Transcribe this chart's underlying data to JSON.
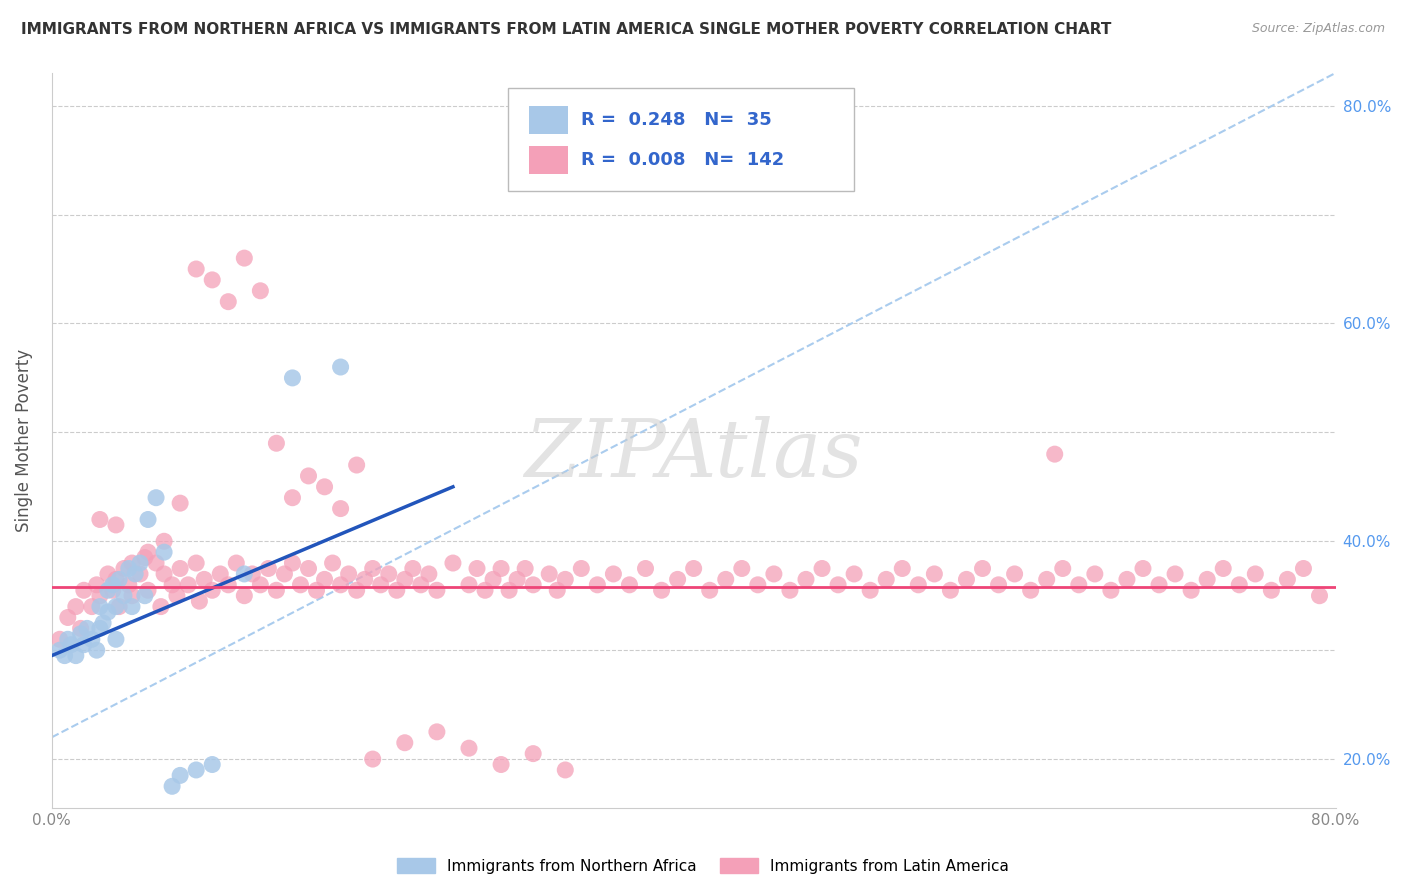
{
  "title": "IMMIGRANTS FROM NORTHERN AFRICA VS IMMIGRANTS FROM LATIN AMERICA SINGLE MOTHER POVERTY CORRELATION CHART",
  "source": "Source: ZipAtlas.com",
  "ylabel": "Single Mother Poverty",
  "legend_label_blue": "Immigrants from Northern Africa",
  "legend_label_pink": "Immigrants from Latin America",
  "R_blue": "0.248",
  "N_blue": "35",
  "R_pink": "0.008",
  "N_pink": "142",
  "blue_color": "#a8c8e8",
  "pink_color": "#f4a0b8",
  "blue_line_color": "#2255bb",
  "pink_line_color": "#ee4477",
  "dashed_line_color": "#aaccee",
  "background_color": "#ffffff",
  "watermark": "ZIPAtlas",
  "blue_scatter_x": [
    0.005,
    0.008,
    0.01,
    0.012,
    0.015,
    0.018,
    0.02,
    0.022,
    0.025,
    0.028,
    0.03,
    0.03,
    0.032,
    0.035,
    0.035,
    0.038,
    0.04,
    0.04,
    0.042,
    0.045,
    0.048,
    0.05,
    0.052,
    0.055,
    0.058,
    0.06,
    0.065,
    0.07,
    0.075,
    0.08,
    0.09,
    0.1,
    0.12,
    0.15,
    0.18
  ],
  "blue_scatter_y": [
    0.3,
    0.295,
    0.31,
    0.305,
    0.295,
    0.315,
    0.305,
    0.32,
    0.31,
    0.3,
    0.34,
    0.32,
    0.325,
    0.355,
    0.335,
    0.36,
    0.34,
    0.31,
    0.365,
    0.35,
    0.375,
    0.34,
    0.37,
    0.38,
    0.35,
    0.42,
    0.44,
    0.39,
    0.175,
    0.185,
    0.19,
    0.195,
    0.37,
    0.55,
    0.56
  ],
  "pink_scatter_x": [
    0.005,
    0.01,
    0.015,
    0.018,
    0.02,
    0.025,
    0.028,
    0.03,
    0.035,
    0.038,
    0.04,
    0.042,
    0.045,
    0.048,
    0.05,
    0.055,
    0.058,
    0.06,
    0.065,
    0.068,
    0.07,
    0.075,
    0.078,
    0.08,
    0.085,
    0.09,
    0.092,
    0.095,
    0.1,
    0.105,
    0.11,
    0.115,
    0.12,
    0.125,
    0.13,
    0.135,
    0.14,
    0.145,
    0.15,
    0.155,
    0.16,
    0.165,
    0.17,
    0.175,
    0.18,
    0.185,
    0.19,
    0.195,
    0.2,
    0.205,
    0.21,
    0.215,
    0.22,
    0.225,
    0.23,
    0.235,
    0.24,
    0.25,
    0.26,
    0.265,
    0.27,
    0.275,
    0.28,
    0.285,
    0.29,
    0.295,
    0.3,
    0.31,
    0.315,
    0.32,
    0.33,
    0.34,
    0.35,
    0.36,
    0.37,
    0.38,
    0.39,
    0.4,
    0.41,
    0.42,
    0.43,
    0.44,
    0.45,
    0.46,
    0.47,
    0.48,
    0.49,
    0.5,
    0.51,
    0.52,
    0.53,
    0.54,
    0.55,
    0.56,
    0.57,
    0.58,
    0.59,
    0.6,
    0.61,
    0.62,
    0.625,
    0.63,
    0.64,
    0.65,
    0.66,
    0.67,
    0.68,
    0.69,
    0.7,
    0.71,
    0.72,
    0.73,
    0.74,
    0.75,
    0.76,
    0.77,
    0.78,
    0.79,
    0.03,
    0.04,
    0.05,
    0.06,
    0.07,
    0.08,
    0.09,
    0.1,
    0.11,
    0.12,
    0.13,
    0.14,
    0.15,
    0.16,
    0.17,
    0.18,
    0.19,
    0.2,
    0.22,
    0.24,
    0.26,
    0.28,
    0.3,
    0.32
  ],
  "pink_scatter_y": [
    0.31,
    0.33,
    0.34,
    0.32,
    0.355,
    0.34,
    0.36,
    0.35,
    0.37,
    0.355,
    0.365,
    0.34,
    0.375,
    0.36,
    0.35,
    0.37,
    0.385,
    0.355,
    0.38,
    0.34,
    0.37,
    0.36,
    0.35,
    0.375,
    0.36,
    0.38,
    0.345,
    0.365,
    0.355,
    0.37,
    0.36,
    0.38,
    0.35,
    0.37,
    0.36,
    0.375,
    0.355,
    0.37,
    0.38,
    0.36,
    0.375,
    0.355,
    0.365,
    0.38,
    0.36,
    0.37,
    0.355,
    0.365,
    0.375,
    0.36,
    0.37,
    0.355,
    0.365,
    0.375,
    0.36,
    0.37,
    0.355,
    0.38,
    0.36,
    0.375,
    0.355,
    0.365,
    0.375,
    0.355,
    0.365,
    0.375,
    0.36,
    0.37,
    0.355,
    0.365,
    0.375,
    0.36,
    0.37,
    0.36,
    0.375,
    0.355,
    0.365,
    0.375,
    0.355,
    0.365,
    0.375,
    0.36,
    0.37,
    0.355,
    0.365,
    0.375,
    0.36,
    0.37,
    0.355,
    0.365,
    0.375,
    0.36,
    0.37,
    0.355,
    0.365,
    0.375,
    0.36,
    0.37,
    0.355,
    0.365,
    0.48,
    0.375,
    0.36,
    0.37,
    0.355,
    0.365,
    0.375,
    0.36,
    0.37,
    0.355,
    0.365,
    0.375,
    0.36,
    0.37,
    0.355,
    0.365,
    0.375,
    0.35,
    0.42,
    0.415,
    0.38,
    0.39,
    0.4,
    0.435,
    0.65,
    0.64,
    0.62,
    0.66,
    0.63,
    0.49,
    0.44,
    0.46,
    0.45,
    0.43,
    0.47,
    0.2,
    0.215,
    0.225,
    0.21,
    0.195,
    0.205,
    0.19
  ],
  "xlim": [
    0.0,
    0.8
  ],
  "ylim": [
    0.155,
    0.83
  ],
  "x_ticks": [
    0.0,
    0.1,
    0.2,
    0.3,
    0.4,
    0.5,
    0.6,
    0.7,
    0.8
  ],
  "y_ticks": [
    0.2,
    0.3,
    0.4,
    0.5,
    0.6,
    0.7,
    0.8
  ],
  "blue_line_x": [
    0.0,
    0.25
  ],
  "blue_line_y": [
    0.295,
    0.45
  ],
  "dashed_line_x": [
    0.0,
    0.8
  ],
  "dashed_line_y": [
    0.22,
    0.83
  ],
  "pink_line_x": [
    0.0,
    0.8
  ],
  "pink_line_y": [
    0.358,
    0.358
  ]
}
